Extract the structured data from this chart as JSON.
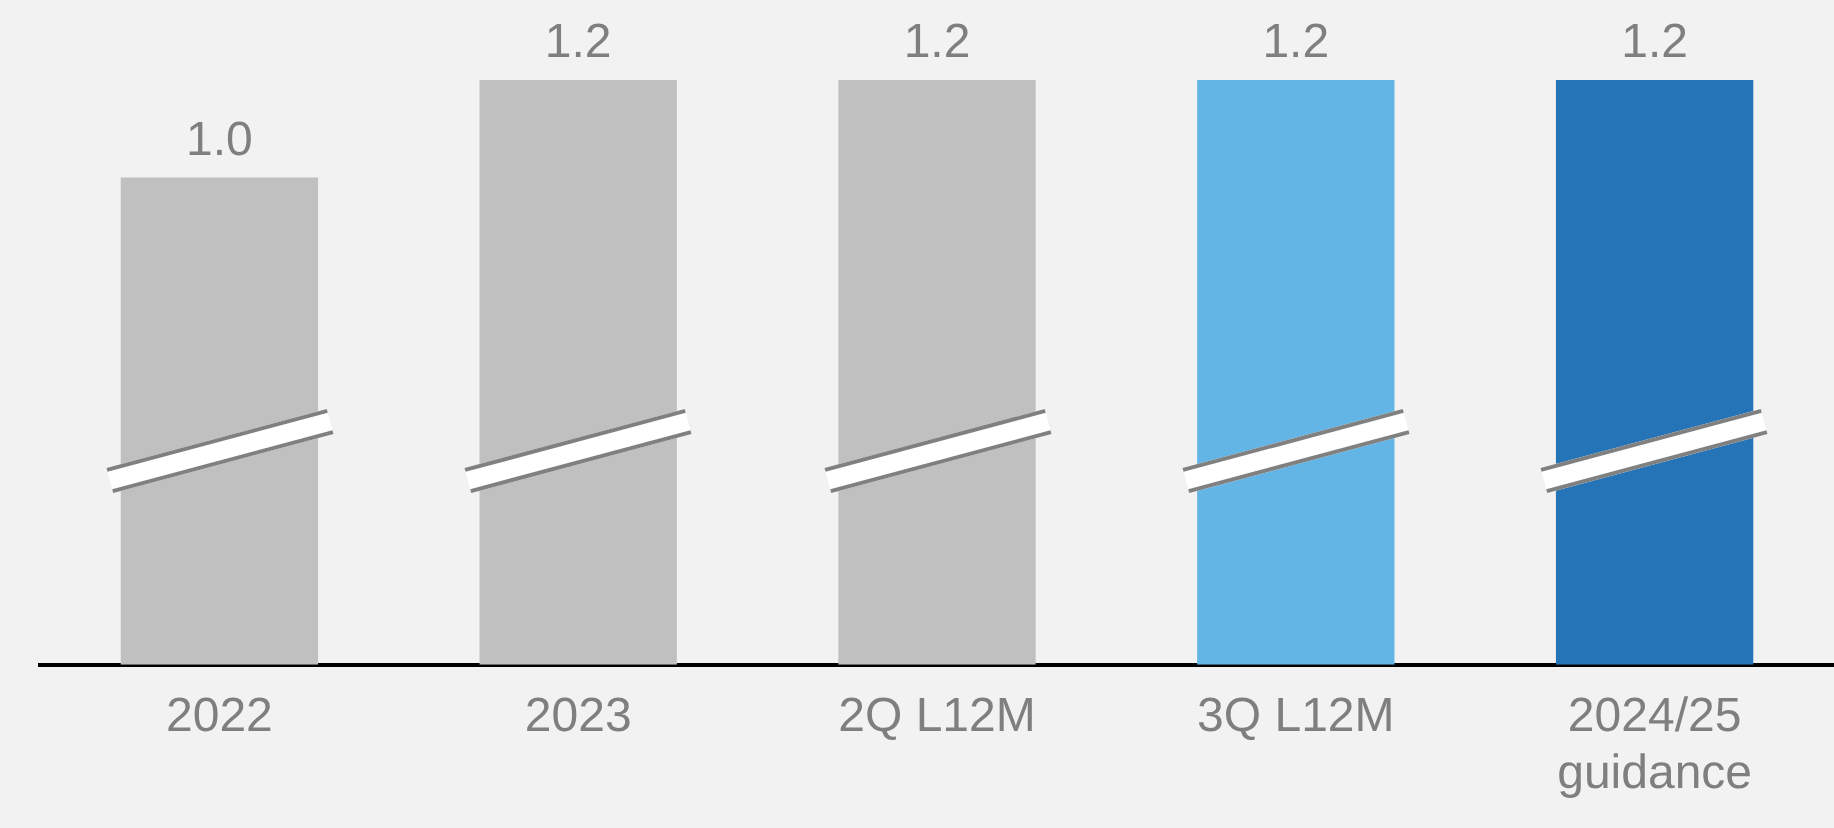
{
  "chart_data": {
    "type": "bar",
    "categories": [
      "2022",
      "2023",
      "2Q L12M",
      "3Q L12M",
      "2024/25 guidance"
    ],
    "values": [
      1.0,
      1.2,
      1.2,
      1.2,
      1.2
    ],
    "colors": [
      "#c0c0c0",
      "#c0c0c0",
      "#c0c0c0",
      "#62b5e5",
      "#2574b7"
    ],
    "value_labels": [
      "1.0",
      "1.2",
      "1.2",
      "1.2",
      "1.2"
    ],
    "grid": false,
    "legend": false
  }
}
